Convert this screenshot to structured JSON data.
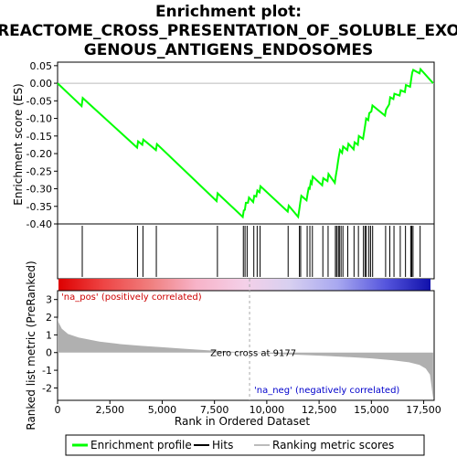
{
  "chart_data": {
    "type": "line",
    "title_line1": "Enrichment plot:",
    "title_line2": "REACTOME_CROSS_PRESENTATION_OF_SOLUBLE_EXO",
    "title_line3": "GENOUS_ANTIGENS_ENDOSOMES",
    "top_panel": {
      "ylabel": "Enrichment score (ES)",
      "ylim": [
        -0.4,
        0.06
      ],
      "yticks": [
        0.05,
        0.0,
        -0.05,
        -0.1,
        -0.15,
        -0.2,
        -0.25,
        -0.3,
        -0.35,
        -0.4
      ],
      "ytick_labels": [
        "0.05",
        "0.00",
        "-0.05",
        "-0.10",
        "-0.15",
        "-0.20",
        "-0.25",
        "-0.30",
        "-0.35",
        "-0.40"
      ],
      "series_name": "Enrichment profile",
      "line_color": "#00ff00",
      "es_curve": [
        [
          0,
          0.0
        ],
        [
          1150,
          -0.065
        ],
        [
          1200,
          -0.042
        ],
        [
          3800,
          -0.183
        ],
        [
          3850,
          -0.165
        ],
        [
          4050,
          -0.175
        ],
        [
          4100,
          -0.16
        ],
        [
          4700,
          -0.19
        ],
        [
          4750,
          -0.173
        ],
        [
          7600,
          -0.335
        ],
        [
          7650,
          -0.313
        ],
        [
          8850,
          -0.38
        ],
        [
          8900,
          -0.362
        ],
        [
          8950,
          -0.36
        ],
        [
          9000,
          -0.34
        ],
        [
          9100,
          -0.34
        ],
        [
          9150,
          -0.325
        ],
        [
          9350,
          -0.338
        ],
        [
          9400,
          -0.32
        ],
        [
          9500,
          -0.322
        ],
        [
          9550,
          -0.305
        ],
        [
          9650,
          -0.31
        ],
        [
          9700,
          -0.293
        ],
        [
          11000,
          -0.365
        ],
        [
          11050,
          -0.348
        ],
        [
          11500,
          -0.38
        ],
        [
          11550,
          -0.36
        ],
        [
          11600,
          -0.34
        ],
        [
          11650,
          -0.32
        ],
        [
          11900,
          -0.333
        ],
        [
          11950,
          -0.315
        ],
        [
          12000,
          -0.298
        ],
        [
          12050,
          -0.3
        ],
        [
          12100,
          -0.28
        ],
        [
          12150,
          -0.285
        ],
        [
          12200,
          -0.265
        ],
        [
          12650,
          -0.29
        ],
        [
          12700,
          -0.27
        ],
        [
          12900,
          -0.278
        ],
        [
          12950,
          -0.258
        ],
        [
          13250,
          -0.283
        ],
        [
          13300,
          -0.263
        ],
        [
          13350,
          -0.245
        ],
        [
          13400,
          -0.225
        ],
        [
          13450,
          -0.205
        ],
        [
          13500,
          -0.19
        ],
        [
          13600,
          -0.198
        ],
        [
          13650,
          -0.18
        ],
        [
          13850,
          -0.19
        ],
        [
          13900,
          -0.172
        ],
        [
          14150,
          -0.188
        ],
        [
          14200,
          -0.168
        ],
        [
          14350,
          -0.175
        ],
        [
          14400,
          -0.15
        ],
        [
          14600,
          -0.158
        ],
        [
          14650,
          -0.14
        ],
        [
          14700,
          -0.12
        ],
        [
          14750,
          -0.1
        ],
        [
          14850,
          -0.105
        ],
        [
          14900,
          -0.085
        ],
        [
          15000,
          -0.08
        ],
        [
          15050,
          -0.063
        ],
        [
          15650,
          -0.092
        ],
        [
          15700,
          -0.075
        ],
        [
          15850,
          -0.06
        ],
        [
          15900,
          -0.04
        ],
        [
          16050,
          -0.045
        ],
        [
          16100,
          -0.03
        ],
        [
          16350,
          -0.035
        ],
        [
          16400,
          -0.02
        ],
        [
          16600,
          -0.025
        ],
        [
          16650,
          -0.005
        ],
        [
          16850,
          -0.01
        ],
        [
          16900,
          0.01
        ],
        [
          16950,
          0.03
        ],
        [
          17000,
          0.038
        ],
        [
          17300,
          0.028
        ],
        [
          17350,
          0.04
        ],
        [
          17950,
          0.0
        ]
      ]
    },
    "hits_panel": {
      "series_name": "Hits",
      "hit_positions": [
        1180,
        3820,
        4080,
        4720,
        7640,
        8880,
        8960,
        9060,
        9380,
        9540,
        9680,
        11020,
        11560,
        11620,
        11930,
        12060,
        12180,
        12680,
        12930,
        13280,
        13340,
        13420,
        13470,
        13550,
        13640,
        13870,
        14170,
        14380,
        14620,
        14700,
        14760,
        14880,
        14960,
        15060,
        15680,
        15880,
        16080,
        16380,
        16630,
        16880,
        16930,
        16990,
        17330
      ]
    },
    "rank_panel": {
      "ylabel": "Ranked list metric (PreRanked)",
      "xlabel": "Rank in Ordered Dataset",
      "ylim": [
        -2.7,
        3.5
      ],
      "yticks": [
        3,
        2,
        1,
        0,
        -1,
        -2
      ],
      "ytick_labels": [
        "3",
        "2",
        "1",
        "0",
        "-1",
        "-2"
      ],
      "series_name": "Ranking metric scores",
      "metric_curve": [
        [
          0,
          2.0
        ],
        [
          50,
          1.7
        ],
        [
          200,
          1.35
        ],
        [
          500,
          1.05
        ],
        [
          1000,
          0.85
        ],
        [
          2000,
          0.62
        ],
        [
          3000,
          0.48
        ],
        [
          4000,
          0.38
        ],
        [
          5000,
          0.3
        ],
        [
          6000,
          0.22
        ],
        [
          7000,
          0.14
        ],
        [
          8000,
          0.07
        ],
        [
          9177,
          0.0
        ],
        [
          10000,
          -0.05
        ],
        [
          11000,
          -0.1
        ],
        [
          12000,
          -0.15
        ],
        [
          13000,
          -0.2
        ],
        [
          14000,
          -0.26
        ],
        [
          15000,
          -0.33
        ],
        [
          16000,
          -0.43
        ],
        [
          16800,
          -0.55
        ],
        [
          17300,
          -0.7
        ],
        [
          17600,
          -0.9
        ],
        [
          17800,
          -1.25
        ],
        [
          17950,
          -2.6
        ]
      ],
      "zero_cross_label": "Zero cross at 9177",
      "zero_cross": 9177,
      "pos_label": "'na_pos' (positively correlated)",
      "neg_label": "'na_neg' (negatively correlated)",
      "pos_color": "#cc0000",
      "neg_color": "#0000cc"
    },
    "xaxis": {
      "xlim": [
        0,
        18000
      ],
      "xticks": [
        0,
        2500,
        5000,
        7500,
        10000,
        12500,
        15000,
        17500
      ],
      "xtick_labels": [
        "0",
        "2,500",
        "5,000",
        "7,500",
        "10,000",
        "12,500",
        "15,000",
        "17,500"
      ],
      "n_genes": 17950
    },
    "legend": [
      "Enrichment profile",
      "Hits",
      "Ranking metric scores"
    ]
  }
}
